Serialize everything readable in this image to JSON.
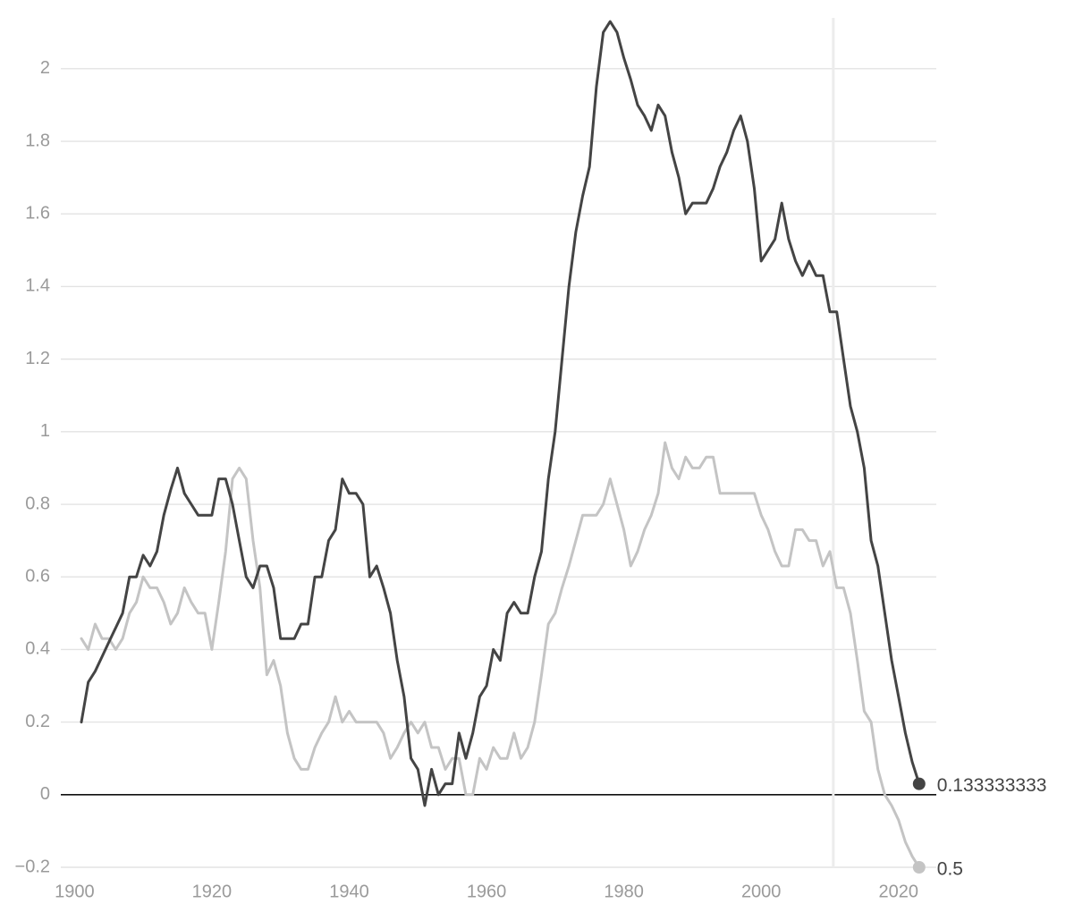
{
  "chart_data": {
    "type": "line",
    "x": [
      1901,
      1902,
      1903,
      1904,
      1905,
      1906,
      1907,
      1908,
      1909,
      1910,
      1911,
      1912,
      1913,
      1914,
      1915,
      1916,
      1917,
      1918,
      1919,
      1920,
      1921,
      1922,
      1923,
      1924,
      1925,
      1926,
      1927,
      1928,
      1929,
      1930,
      1931,
      1932,
      1933,
      1934,
      1935,
      1936,
      1937,
      1938,
      1939,
      1940,
      1941,
      1942,
      1943,
      1944,
      1945,
      1946,
      1947,
      1948,
      1949,
      1950,
      1951,
      1952,
      1953,
      1954,
      1955,
      1956,
      1957,
      1958,
      1959,
      1960,
      1961,
      1962,
      1963,
      1964,
      1965,
      1966,
      1967,
      1968,
      1969,
      1970,
      1971,
      1972,
      1973,
      1974,
      1975,
      1976,
      1977,
      1978,
      1979,
      1980,
      1981,
      1982,
      1983,
      1984,
      1985,
      1986,
      1987,
      1988,
      1989,
      1990,
      1991,
      1992,
      1993,
      1994,
      1995,
      1996,
      1997,
      1998,
      1999,
      2000,
      2001,
      2002,
      2003,
      2004,
      2005,
      2006,
      2007,
      2008,
      2009,
      2010,
      2011,
      2012,
      2013,
      2014,
      2015,
      2016,
      2017,
      2018,
      2019,
      2020,
      2021,
      2022,
      2023
    ],
    "series": [
      {
        "color": "#c4c4c4",
        "values": [
          0.43,
          0.4,
          0.47,
          0.43,
          0.43,
          0.4,
          0.43,
          0.5,
          0.53,
          0.6,
          0.57,
          0.57,
          0.53,
          0.47,
          0.5,
          0.57,
          0.53,
          0.5,
          0.5,
          0.4,
          0.53,
          0.67,
          0.87,
          0.9,
          0.87,
          0.7,
          0.57,
          0.33,
          0.37,
          0.3,
          0.17,
          0.1,
          0.07,
          0.07,
          0.13,
          0.17,
          0.2,
          0.27,
          0.2,
          0.23,
          0.2,
          0.2,
          0.2,
          0.2,
          0.17,
          0.1,
          0.13,
          0.17,
          0.2,
          0.17,
          0.2,
          0.13,
          0.13,
          0.07,
          0.1,
          0.1,
          0.0,
          0.0,
          0.1,
          0.07,
          0.13,
          0.1,
          0.1,
          0.17,
          0.1,
          0.13,
          0.2,
          0.33,
          0.47,
          0.5,
          0.57,
          0.63,
          0.7,
          0.77,
          0.77,
          0.77,
          0.8,
          0.87,
          0.8,
          0.73,
          0.63,
          0.67,
          0.73,
          0.77,
          0.83,
          0.97,
          0.9,
          0.87,
          0.93,
          0.9,
          0.9,
          0.93,
          0.93,
          0.83,
          0.83,
          0.83,
          0.83,
          0.83,
          0.83,
          0.77,
          0.73,
          0.67,
          0.63,
          0.63,
          0.73,
          0.73,
          0.7,
          0.7,
          0.63,
          0.67,
          0.57,
          0.57,
          0.5,
          0.37,
          0.23,
          0.2,
          0.07,
          0.0,
          -0.03,
          -0.07,
          -0.13,
          -0.17,
          -0.2
        ]
      },
      {
        "color": "#444444",
        "values": [
          0.2,
          0.31,
          0.34,
          0.38,
          0.42,
          0.46,
          0.5,
          0.6,
          0.6,
          0.66,
          0.63,
          0.67,
          0.77,
          0.84,
          0.9,
          0.83,
          0.8,
          0.77,
          0.77,
          0.77,
          0.87,
          0.87,
          0.8,
          0.7,
          0.6,
          0.57,
          0.63,
          0.63,
          0.57,
          0.43,
          0.43,
          0.43,
          0.47,
          0.47,
          0.6,
          0.6,
          0.7,
          0.73,
          0.87,
          0.83,
          0.83,
          0.8,
          0.6,
          0.63,
          0.57,
          0.5,
          0.37,
          0.27,
          0.1,
          0.07,
          -0.03,
          0.07,
          0.0,
          0.03,
          0.03,
          0.17,
          0.1,
          0.17,
          0.27,
          0.3,
          0.4,
          0.37,
          0.5,
          0.53,
          0.5,
          0.5,
          0.6,
          0.67,
          0.87,
          1.0,
          1.2,
          1.4,
          1.55,
          1.65,
          1.73,
          1.95,
          2.1,
          2.13,
          2.1,
          2.03,
          1.97,
          1.9,
          1.87,
          1.83,
          1.9,
          1.87,
          1.77,
          1.7,
          1.6,
          1.63,
          1.63,
          1.63,
          1.67,
          1.73,
          1.77,
          1.83,
          1.87,
          1.8,
          1.67,
          1.47,
          1.5,
          1.53,
          1.63,
          1.53,
          1.47,
          1.43,
          1.47,
          1.43,
          1.43,
          1.33,
          1.33,
          1.2,
          1.07,
          1.0,
          0.9,
          0.7,
          0.63,
          0.5,
          0.37,
          0.27,
          0.17,
          0.09,
          0.03
        ]
      }
    ],
    "end_labels": [
      "0.5",
      "0.133333333"
    ],
    "xlim": [
      1898,
      2025.5
    ],
    "xticks": [
      1900,
      1920,
      1940,
      1960,
      1980,
      2000,
      2020
    ],
    "ylim": [
      -0.2,
      2.14
    ],
    "yticks": [
      {
        "value": -0.2,
        "label": "−0.2"
      },
      0,
      0.2,
      0.4,
      0.6,
      0.8,
      1,
      1.2,
      1.4,
      1.6,
      1.8,
      2
    ],
    "grid": true,
    "reference_x": 2010.5
  }
}
